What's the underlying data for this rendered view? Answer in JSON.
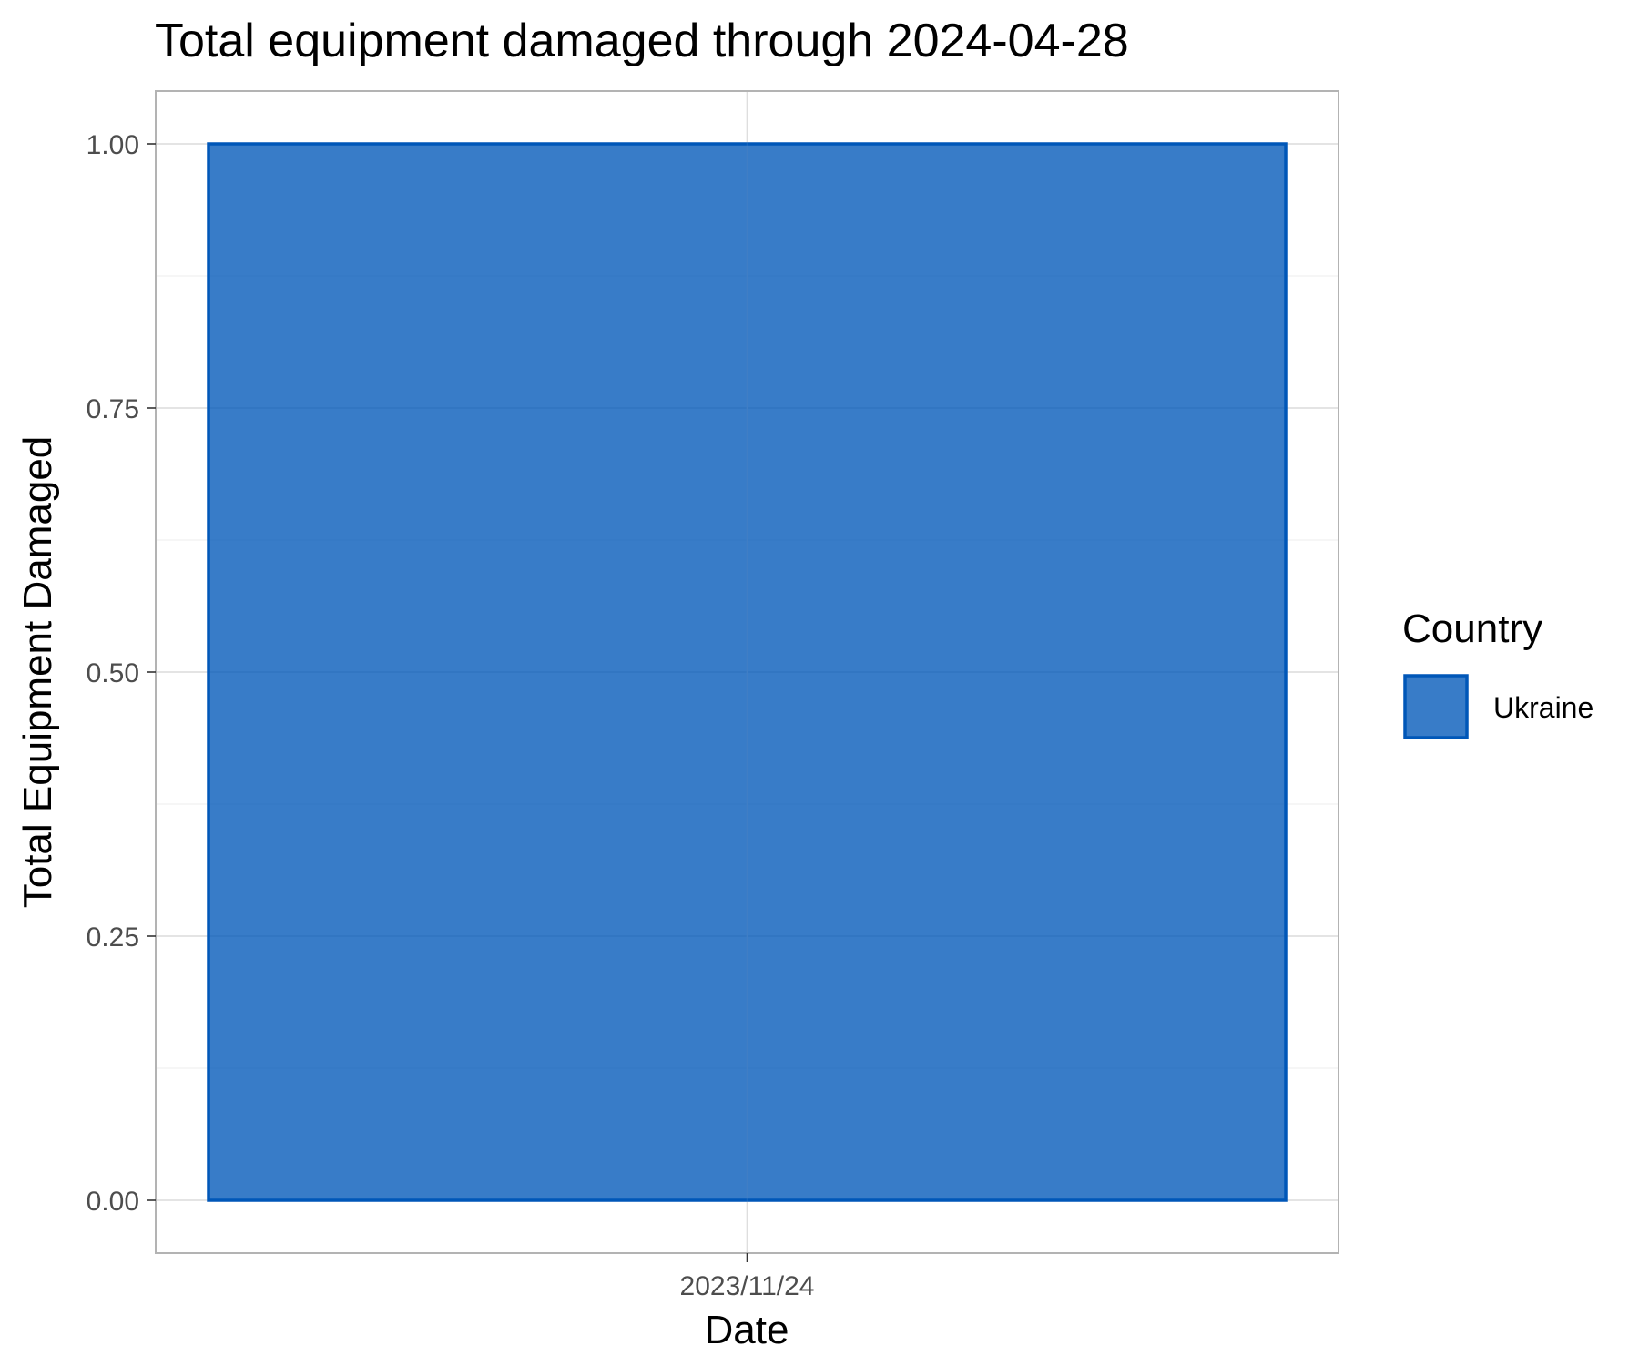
{
  "chart_data": {
    "type": "area",
    "title": "Total equipment damaged through 2024-04-28",
    "xlabel": "Date",
    "ylabel": "Total Equipment Damaged",
    "x": [
      "2023/11/24"
    ],
    "series": [
      {
        "name": "Ukraine",
        "values": [
          1
        ],
        "color": "#0057b8"
      }
    ],
    "ylim": [
      -0.05,
      1.05
    ],
    "yticks": [
      0,
      0.25,
      0.5,
      0.75,
      1
    ],
    "ytick_labels": [
      "0.00",
      "0.25",
      "0.50",
      "0.75",
      "1.00"
    ],
    "xtick_labels": [
      "2023/11/24"
    ],
    "grid": true,
    "legend": {
      "title": "Country",
      "placement": "right",
      "entries": [
        "Ukraine"
      ]
    }
  }
}
